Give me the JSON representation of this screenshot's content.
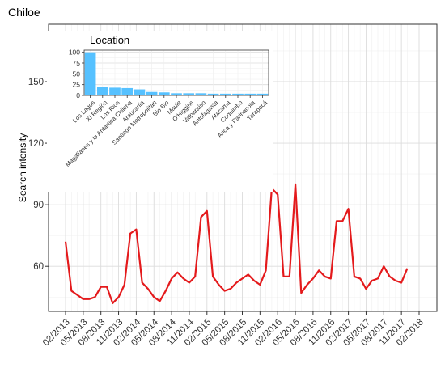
{
  "chart_data": [
    {
      "type": "line",
      "title": "Chiloe",
      "xlabel": "",
      "ylabel": "Search intensity",
      "x_ticks": [
        "02/2013",
        "05/2013",
        "08/2013",
        "11/2013",
        "02/2014",
        "05/2014",
        "08/2014",
        "11/2014",
        "02/2015",
        "05/2015",
        "08/2015",
        "11/2015",
        "02/2016",
        "05/2016",
        "08/2016",
        "11/2016",
        "02/2017",
        "05/2017",
        "08/2017",
        "11/2017",
        "02/2018"
      ],
      "y_ticks": [
        60,
        90,
        120,
        150
      ],
      "ylim": [
        38,
        178
      ],
      "grid": true,
      "line_color": "#e41a1c",
      "series": [
        {
          "x": [
            "2013-02",
            "2013-03",
            "2013-04",
            "2013-05",
            "2013-06",
            "2013-07",
            "2013-08",
            "2013-09",
            "2013-10",
            "2013-11",
            "2013-12",
            "2014-01",
            "2014-02",
            "2014-03",
            "2014-04",
            "2014-05",
            "2014-06",
            "2014-07",
            "2014-08",
            "2014-09",
            "2014-10",
            "2014-11",
            "2014-12",
            "2015-01",
            "2015-02",
            "2015-03",
            "2015-04",
            "2015-05",
            "2015-06",
            "2015-07",
            "2015-08",
            "2015-09",
            "2015-10",
            "2015-11",
            "2015-12",
            "2016-01",
            "2016-02",
            "2016-03",
            "2016-04",
            "2016-05",
            "2016-06",
            "2016-07",
            "2016-08",
            "2016-09",
            "2016-10",
            "2016-11",
            "2016-12",
            "2017-01",
            "2017-02",
            "2017-03",
            "2017-04",
            "2017-05",
            "2017-06",
            "2017-07",
            "2017-08",
            "2017-09",
            "2017-10",
            "2017-11",
            "2017-12"
          ],
          "values": [
            72,
            48,
            46,
            44,
            44,
            45,
            50,
            50,
            42,
            45,
            51,
            76,
            78,
            52,
            49,
            45,
            43,
            48,
            54,
            57,
            54,
            52,
            55,
            84,
            87,
            55,
            51,
            48,
            49,
            52,
            54,
            56,
            53,
            51,
            58,
            98,
            95,
            55,
            55,
            100,
            47,
            51,
            54,
            58,
            55,
            54,
            82,
            82,
            88,
            55,
            54,
            49,
            53,
            54,
            60,
            55,
            53,
            52,
            59
          ]
        }
      ]
    },
    {
      "type": "bar",
      "title": "Location",
      "categories": [
        "Los Lagos",
        "XI Región",
        "Los Rios",
        "Magallanes y la Antártica Chilena",
        "Araucania",
        "Santiago Metropolitan",
        "Bio Bio",
        "Maule",
        "O'Higgins",
        "Valparaíso",
        "Antofagasta",
        "Atacama",
        "Coquimbo",
        "Arica y Parinacota",
        "Tarapacá"
      ],
      "values": [
        100,
        20,
        18,
        17,
        14,
        8,
        7,
        5,
        5,
        5,
        4,
        4,
        4,
        4,
        4
      ],
      "y_ticks": [
        0,
        25,
        50,
        75,
        100
      ],
      "ylim": [
        0,
        105
      ],
      "bar_color": "#56c1ff"
    }
  ]
}
